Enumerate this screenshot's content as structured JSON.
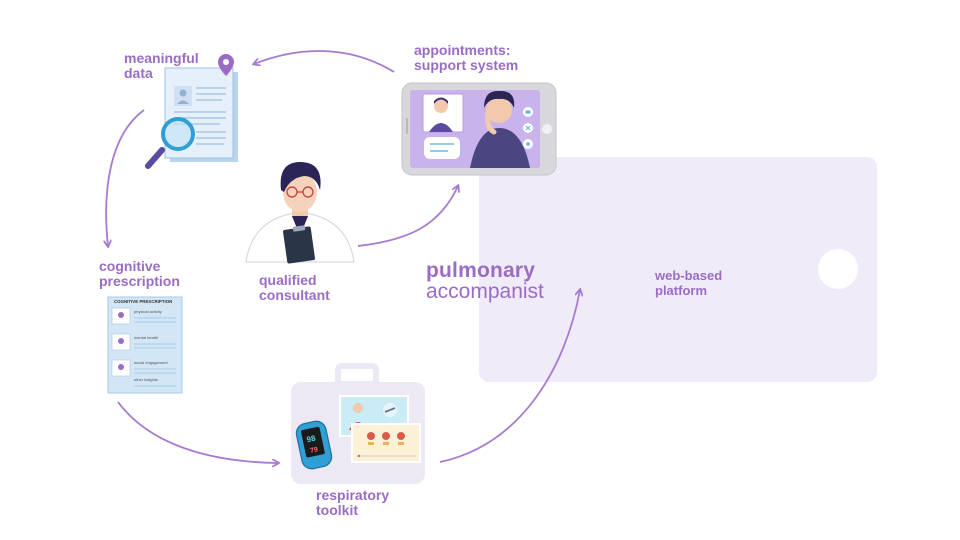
{
  "nodes": {
    "meaningful_data": "meaningful\ndata",
    "appointments": "appointments:\nsupport system",
    "qualified_consultant": "qualified\nconsultant",
    "cognitive_prescription": "cognitive\nprescription",
    "respiratory_toolkit": "respiratory\ntoolkit",
    "web_platform": "web-based\nplatform"
  },
  "brand": {
    "bold": "pulmonary",
    "light": "accompanist"
  },
  "prescription_doc": {
    "header": "COGNITIVE PRESCRIPTION",
    "items": [
      "physical activity",
      "mental health",
      "social engagement",
      "other insights"
    ]
  },
  "oximeter": {
    "spo2": "98",
    "pulse": "79"
  },
  "colors": {
    "accent": "#9b6cc4",
    "panel": "#efebf9",
    "arrow": "#a67bd0",
    "toolkit_bg": "#ece8f4"
  }
}
